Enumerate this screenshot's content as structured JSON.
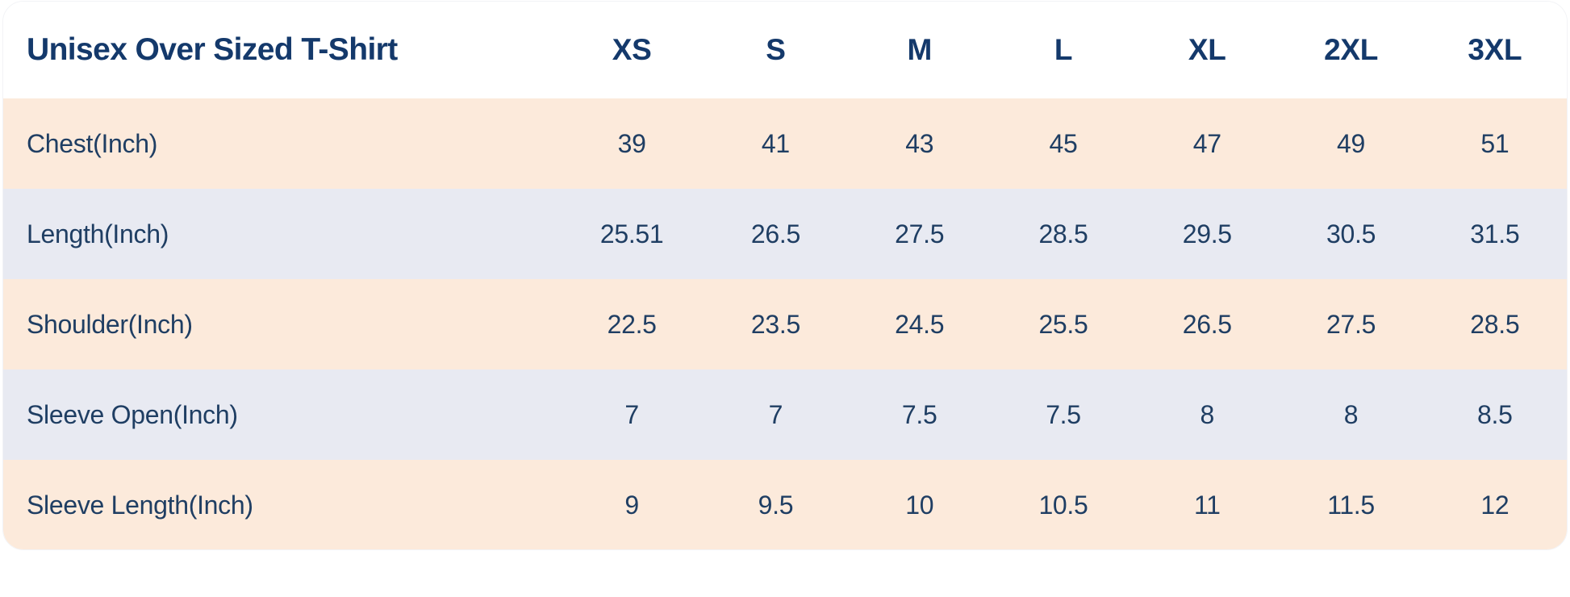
{
  "chart_data": {
    "type": "table",
    "title": "Unisex Over Sized T-Shirt",
    "columns": [
      "XS",
      "S",
      "M",
      "L",
      "XL",
      "2XL",
      "3XL"
    ],
    "rows": [
      {
        "label": "Chest(Inch)",
        "values": [
          39,
          41,
          43,
          45,
          47,
          49,
          51
        ]
      },
      {
        "label": "Length(Inch)",
        "values": [
          25.51,
          26.5,
          27.5,
          28.5,
          29.5,
          30.5,
          31.5
        ]
      },
      {
        "label": "Shoulder(Inch)",
        "values": [
          22.5,
          23.5,
          24.5,
          25.5,
          26.5,
          27.5,
          28.5
        ]
      },
      {
        "label": "Sleeve Open(Inch)",
        "values": [
          7,
          7,
          7.5,
          7.5,
          8,
          8,
          8.5
        ]
      },
      {
        "label": "Sleeve Length(Inch)",
        "values": [
          9,
          9.5,
          10,
          10.5,
          11,
          11.5,
          12
        ]
      }
    ],
    "layout": {
      "units": "Inch",
      "row_striping": [
        "peach",
        "blue-gray"
      ],
      "grid": false,
      "legend": "none"
    },
    "colors": {
      "text_navy": "#1f3e63",
      "title_navy": "#14396b",
      "row_odd_bg": "#fceadb",
      "row_even_bg": "#e8eaf2",
      "card_bg": "#ffffff"
    }
  }
}
